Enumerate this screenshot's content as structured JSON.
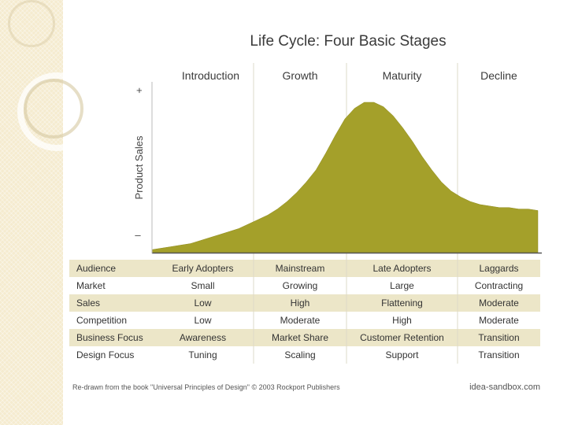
{
  "chart_data": {
    "type": "area",
    "title": "Life Cycle: Four Basic Stages",
    "ylabel": "Product Sales",
    "y_plus": "+",
    "y_minus": "–",
    "stages": [
      "Introduction",
      "Growth",
      "Maturity",
      "Decline"
    ],
    "x": [
      0,
      0.1,
      0.2,
      0.3,
      0.4,
      0.5,
      0.6,
      0.7,
      0.8,
      0.9,
      1.0,
      1.1,
      1.2,
      1.3,
      1.4,
      1.5,
      1.6,
      1.7,
      1.8,
      1.9,
      2.0,
      2.1,
      2.2,
      2.3,
      2.4,
      2.5,
      2.6,
      2.7,
      2.8,
      2.9,
      3.0,
      3.1,
      3.2,
      3.3,
      3.4,
      3.5,
      3.6,
      3.7,
      3.8,
      3.9,
      4.0
    ],
    "y": [
      0.02,
      0.03,
      0.04,
      0.05,
      0.06,
      0.08,
      0.1,
      0.12,
      0.14,
      0.16,
      0.19,
      0.22,
      0.25,
      0.29,
      0.34,
      0.4,
      0.47,
      0.55,
      0.66,
      0.78,
      0.89,
      0.96,
      1.0,
      1.0,
      0.97,
      0.91,
      0.83,
      0.74,
      0.64,
      0.55,
      0.47,
      0.41,
      0.37,
      0.34,
      0.32,
      0.31,
      0.3,
      0.3,
      0.29,
      0.29,
      0.28
    ],
    "ylim": [
      0,
      1
    ],
    "fill_color": "#a4a02a",
    "table": {
      "rows": [
        {
          "label": "Audience",
          "values": [
            "Early Adopters",
            "Mainstream",
            "Late Adopters",
            "Laggards"
          ]
        },
        {
          "label": "Market",
          "values": [
            "Small",
            "Growing",
            "Large",
            "Contracting"
          ]
        },
        {
          "label": "Sales",
          "values": [
            "Low",
            "High",
            "Flattening",
            "Moderate"
          ]
        },
        {
          "label": "Competition",
          "values": [
            "Low",
            "Moderate",
            "High",
            "Moderate"
          ]
        },
        {
          "label": "Business Focus",
          "values": [
            "Awareness",
            "Market Share",
            "Customer Retention",
            "Transition"
          ]
        },
        {
          "label": "Design Focus",
          "values": [
            "Tuning",
            "Scaling",
            "Support",
            "Transition"
          ]
        }
      ],
      "band_color": "#ece6c8"
    },
    "footer_left": "Re-drawn from  the book \"Universal Principles of Design\"  © 2003 Rockport Publishers",
    "footer_right": "idea-sandbox.com"
  }
}
